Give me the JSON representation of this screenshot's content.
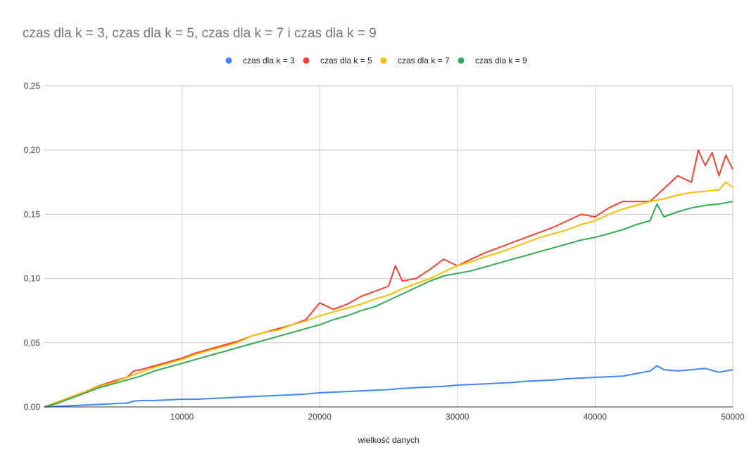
{
  "chart_data": {
    "type": "line",
    "title": "czas dla k = 3, czas dla k = 5, czas dla k = 7 i czas dla k = 9",
    "xlabel": "wielkość danych",
    "ylabel": "",
    "xlim": [
      0,
      50000
    ],
    "ylim": [
      0,
      0.25
    ],
    "x_ticks": [
      10000,
      20000,
      30000,
      40000,
      50000
    ],
    "x_tick_labels": [
      "10000",
      "20000",
      "30000",
      "40000",
      "50000"
    ],
    "y_ticks": [
      0,
      0.05,
      0.1,
      0.15,
      0.2,
      0.25
    ],
    "y_tick_labels": [
      "0,00",
      "0,05",
      "0,10",
      "0,15",
      "0,20",
      "0,25"
    ],
    "grid": true,
    "legend_position": "top-center",
    "series": [
      {
        "name": "czas dla k = 3",
        "color": "#4285f4",
        "x": [
          0,
          1000,
          2000,
          3000,
          4000,
          5000,
          6000,
          6500,
          7000,
          8000,
          9000,
          10000,
          11000,
          12000,
          13000,
          14000,
          15000,
          16000,
          17000,
          18000,
          19000,
          20000,
          21000,
          22000,
          23000,
          24000,
          25000,
          26000,
          27000,
          28000,
          29000,
          30000,
          31000,
          32000,
          33000,
          34000,
          35000,
          36000,
          37000,
          38000,
          39000,
          40000,
          41000,
          42000,
          43000,
          44000,
          44500,
          45000,
          46000,
          47000,
          48000,
          49000,
          50000
        ],
        "values": [
          0,
          0.0005,
          0.001,
          0.0015,
          0.002,
          0.0025,
          0.003,
          0.0045,
          0.005,
          0.005,
          0.0055,
          0.006,
          0.006,
          0.0065,
          0.007,
          0.0075,
          0.008,
          0.0085,
          0.009,
          0.0095,
          0.01,
          0.011,
          0.0115,
          0.012,
          0.0125,
          0.013,
          0.0135,
          0.0145,
          0.015,
          0.0155,
          0.016,
          0.017,
          0.0175,
          0.018,
          0.0185,
          0.019,
          0.02,
          0.0205,
          0.021,
          0.022,
          0.0225,
          0.023,
          0.0235,
          0.024,
          0.026,
          0.028,
          0.032,
          0.029,
          0.028,
          0.029,
          0.03,
          0.027,
          0.029
        ]
      },
      {
        "name": "czas dla k = 5",
        "color": "#ea4335",
        "x": [
          0,
          1000,
          2000,
          3000,
          4000,
          5000,
          6000,
          6500,
          7000,
          8000,
          9000,
          10000,
          11000,
          12000,
          13000,
          14000,
          15000,
          16000,
          17000,
          18000,
          19000,
          20000,
          21000,
          22000,
          23000,
          24000,
          25000,
          25500,
          26000,
          27000,
          28000,
          29000,
          30000,
          31000,
          32000,
          33000,
          34000,
          35000,
          36000,
          37000,
          38000,
          39000,
          40000,
          41000,
          42000,
          43000,
          44000,
          45000,
          46000,
          47000,
          47500,
          48000,
          48500,
          49000,
          49500,
          50000
        ],
        "values": [
          0,
          0.004,
          0.008,
          0.012,
          0.0165,
          0.02,
          0.023,
          0.028,
          0.029,
          0.032,
          0.035,
          0.038,
          0.042,
          0.045,
          0.048,
          0.051,
          0.055,
          0.058,
          0.061,
          0.064,
          0.068,
          0.081,
          0.076,
          0.08,
          0.086,
          0.09,
          0.094,
          0.11,
          0.098,
          0.1,
          0.107,
          0.115,
          0.11,
          0.115,
          0.12,
          0.124,
          0.128,
          0.132,
          0.136,
          0.14,
          0.145,
          0.15,
          0.148,
          0.155,
          0.16,
          0.16,
          0.16,
          0.17,
          0.18,
          0.175,
          0.2,
          0.188,
          0.198,
          0.18,
          0.196,
          0.185
        ]
      },
      {
        "name": "czas dla k = 7",
        "color": "#fbbc04",
        "x": [
          0,
          1000,
          2000,
          3000,
          4000,
          5000,
          6000,
          7000,
          8000,
          9000,
          10000,
          11000,
          12000,
          13000,
          14000,
          15000,
          16000,
          17000,
          18000,
          19000,
          20000,
          21000,
          22000,
          23000,
          24000,
          25000,
          26000,
          27000,
          28000,
          29000,
          30000,
          31000,
          32000,
          33000,
          34000,
          35000,
          36000,
          37000,
          38000,
          39000,
          40000,
          41000,
          42000,
          43000,
          44000,
          45000,
          46000,
          47000,
          48000,
          49000,
          49500,
          50000
        ],
        "values": [
          0,
          0.004,
          0.008,
          0.012,
          0.016,
          0.019,
          0.023,
          0.027,
          0.031,
          0.034,
          0.037,
          0.041,
          0.044,
          0.047,
          0.05,
          0.055,
          0.058,
          0.06,
          0.064,
          0.067,
          0.071,
          0.074,
          0.077,
          0.08,
          0.084,
          0.087,
          0.092,
          0.096,
          0.1,
          0.105,
          0.11,
          0.113,
          0.117,
          0.12,
          0.124,
          0.128,
          0.132,
          0.135,
          0.138,
          0.142,
          0.145,
          0.15,
          0.154,
          0.157,
          0.16,
          0.162,
          0.165,
          0.167,
          0.168,
          0.169,
          0.175,
          0.171
        ]
      },
      {
        "name": "czas dla k = 9",
        "color": "#34a853",
        "x": [
          0,
          1000,
          2000,
          3000,
          4000,
          5000,
          6000,
          7000,
          8000,
          9000,
          10000,
          11000,
          12000,
          13000,
          14000,
          15000,
          16000,
          17000,
          18000,
          19000,
          20000,
          21000,
          22000,
          23000,
          24000,
          25000,
          26000,
          27000,
          28000,
          29000,
          30000,
          31000,
          32000,
          33000,
          34000,
          35000,
          36000,
          37000,
          38000,
          39000,
          40000,
          41000,
          42000,
          43000,
          44000,
          44500,
          45000,
          46000,
          47000,
          48000,
          49000,
          50000
        ],
        "values": [
          0,
          0.003,
          0.007,
          0.011,
          0.015,
          0.018,
          0.021,
          0.024,
          0.028,
          0.031,
          0.034,
          0.037,
          0.04,
          0.043,
          0.046,
          0.049,
          0.052,
          0.055,
          0.058,
          0.061,
          0.064,
          0.068,
          0.071,
          0.075,
          0.078,
          0.083,
          0.088,
          0.093,
          0.098,
          0.102,
          0.104,
          0.106,
          0.109,
          0.112,
          0.115,
          0.118,
          0.121,
          0.124,
          0.127,
          0.13,
          0.132,
          0.135,
          0.138,
          0.142,
          0.145,
          0.158,
          0.148,
          0.152,
          0.155,
          0.157,
          0.158,
          0.16
        ]
      }
    ]
  }
}
